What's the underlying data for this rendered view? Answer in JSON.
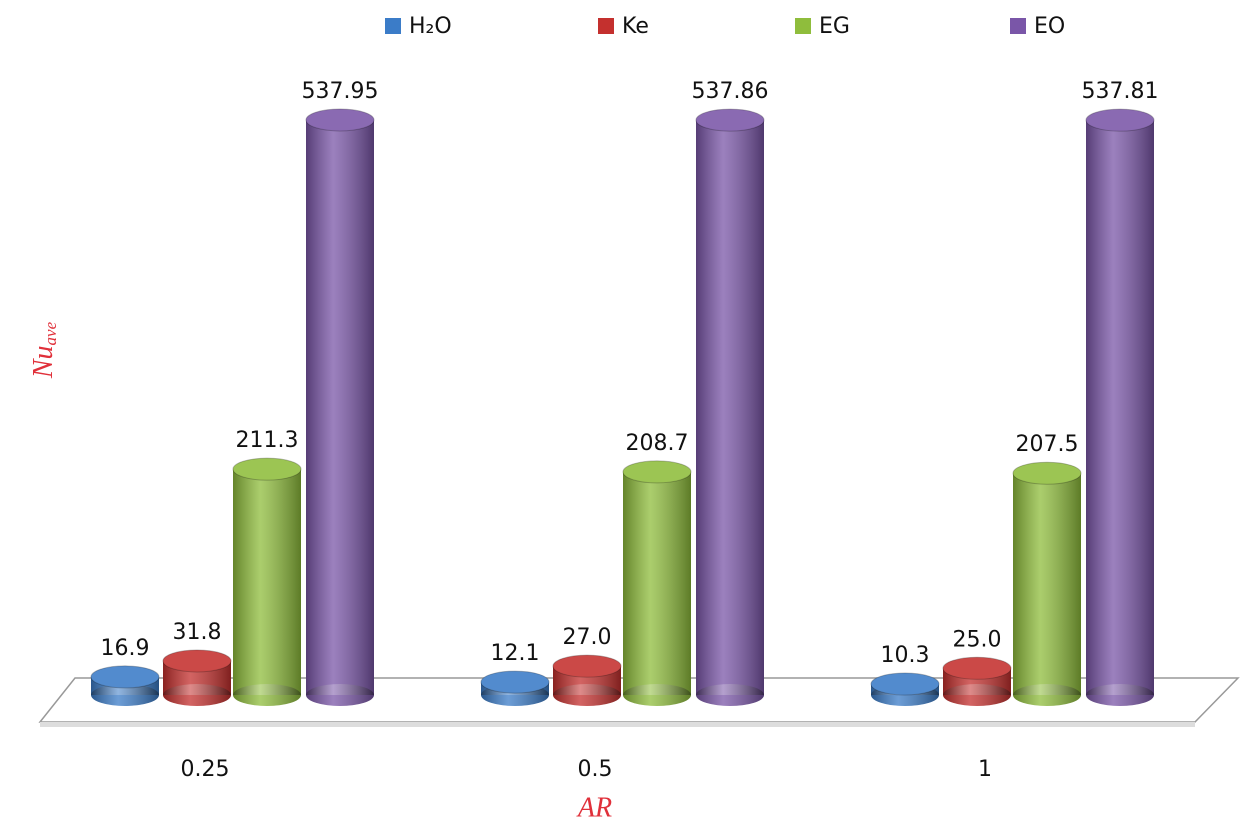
{
  "chart_data": {
    "type": "bar3d",
    "categories": [
      "0.25",
      "0.5",
      "1"
    ],
    "x_label": "AR",
    "y_label": {
      "main": "Nu",
      "sub": "ave"
    },
    "series": [
      {
        "name": "H₂O",
        "color": "#3b7cc8",
        "values": [
          16.9,
          12.1,
          10.3
        ]
      },
      {
        "name": "Ke",
        "color": "#c4302e",
        "values": [
          31.8,
          27.0,
          25.0
        ],
        "value_labels": [
          "31.8",
          "27.0",
          "25.0"
        ]
      },
      {
        "name": "EG",
        "color": "#8fbd3c",
        "values": [
          211.3,
          208.7,
          207.5
        ]
      },
      {
        "name": "EO",
        "color": "#7a56a8",
        "values": [
          537.95,
          537.86,
          537.81
        ]
      }
    ]
  }
}
